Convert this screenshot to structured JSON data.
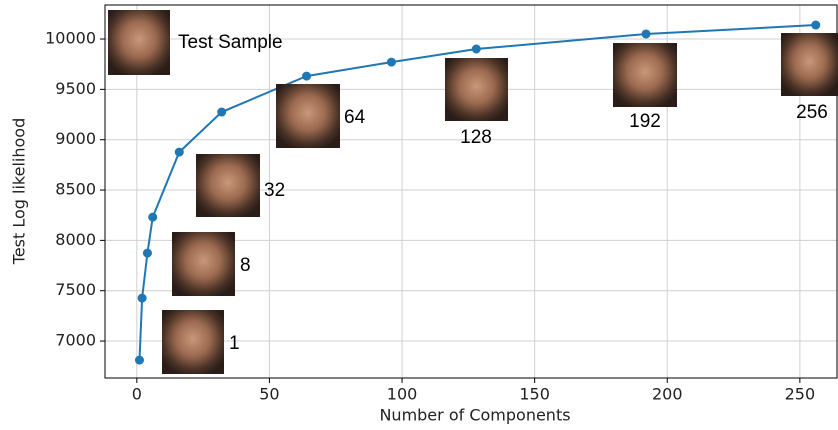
{
  "chart_data": {
    "type": "line",
    "x_label": "Number of Components",
    "y_label": "Test Log likelihood",
    "x": [
      1,
      2,
      4,
      6,
      16,
      32,
      64,
      96,
      128,
      192,
      256
    ],
    "series": [
      {
        "color": "#1f77b4",
        "values": [
          6811,
          7427,
          7874,
          8231,
          8877,
          9275,
          9632,
          9771,
          9901,
          10050,
          10139
        ]
      }
    ],
    "xlim": [
      -12,
      264
    ],
    "ylim": [
      6633,
      10338
    ],
    "xticks": [
      0,
      50,
      100,
      150,
      200,
      250
    ],
    "yticks": [
      7000,
      7500,
      8000,
      8500,
      9000,
      9500,
      10000
    ],
    "grid": true,
    "annotations": [
      "Test Sample",
      "1",
      "8",
      "32",
      "64",
      "128",
      "192",
      "256"
    ]
  }
}
